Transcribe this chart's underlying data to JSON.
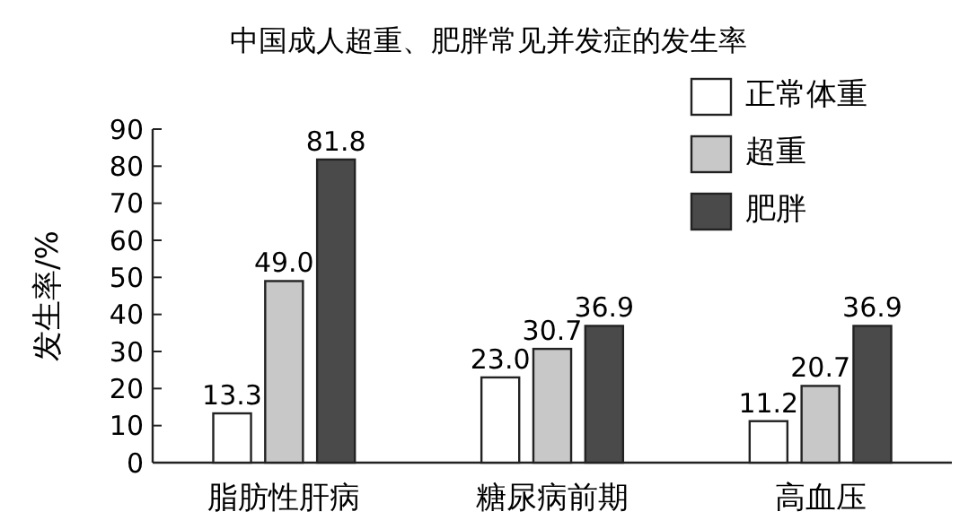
{
  "chart_data": {
    "type": "bar",
    "title": "中国成人超重、肥胖常见并发症的发生率",
    "ylabel": "发生率/%",
    "categories": [
      "脂肪性肝病",
      "糖尿病前期",
      "高血压"
    ],
    "series": [
      {
        "name": "正常体重",
        "color": "#ffffff",
        "values": [
          13.3,
          23.0,
          11.2
        ]
      },
      {
        "name": "超重",
        "color": "#c8c8c8",
        "values": [
          49.0,
          30.7,
          20.7
        ]
      },
      {
        "name": "肥胖",
        "color": "#4a4a4a",
        "values": [
          81.8,
          36.9,
          36.9
        ]
      }
    ],
    "value_labels": [
      [
        "13.3",
        "23.0",
        "11.2"
      ],
      [
        "49.0",
        "30.7",
        "20.7"
      ],
      [
        "81.8",
        "36.9",
        "36.9"
      ]
    ],
    "ylim": [
      0,
      90
    ],
    "yticks": [
      0,
      10,
      20,
      30,
      40,
      50,
      60,
      70,
      80,
      90
    ],
    "grid": false,
    "legend": "top right"
  }
}
